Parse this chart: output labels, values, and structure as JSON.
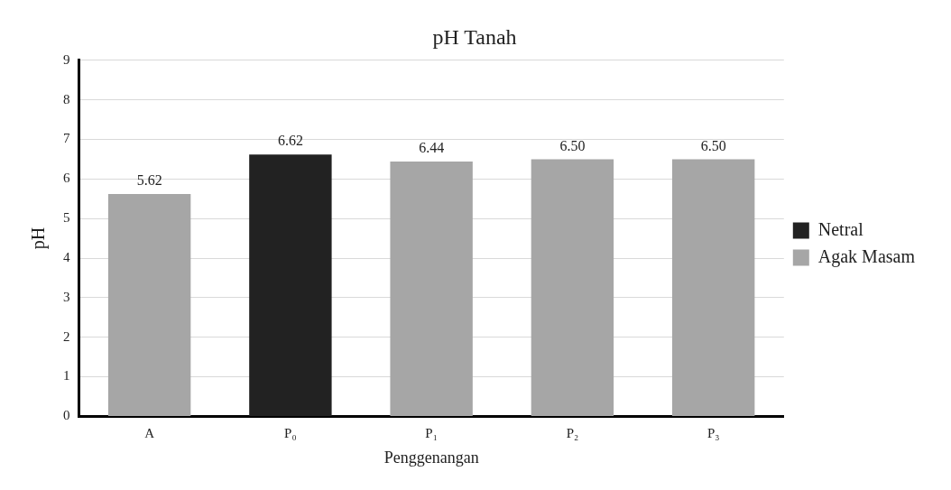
{
  "chart_data": {
    "type": "bar",
    "title": "pH Tanah",
    "xlabel": "Penggenangan",
    "ylabel": "pH",
    "categories": [
      "A",
      "P₀",
      "P₁",
      "P₂",
      "P₃"
    ],
    "series": [
      {
        "name": "Netral",
        "color": "#222222",
        "values": [
          null,
          6.62,
          null,
          null,
          null
        ],
        "value_labels": [
          null,
          "6.62",
          null,
          null,
          null
        ]
      },
      {
        "name": "Agak Masam",
        "color": "#a6a6a6",
        "values": [
          5.62,
          null,
          6.44,
          6.5,
          6.5
        ],
        "value_labels": [
          "5.62",
          null,
          "6.44",
          "6.50",
          "6.50"
        ]
      }
    ],
    "ylim": [
      0,
      9
    ],
    "yticks": [
      0,
      1,
      2,
      3,
      4,
      5,
      6,
      7,
      8,
      9
    ],
    "grid": "y",
    "legend": "right"
  }
}
